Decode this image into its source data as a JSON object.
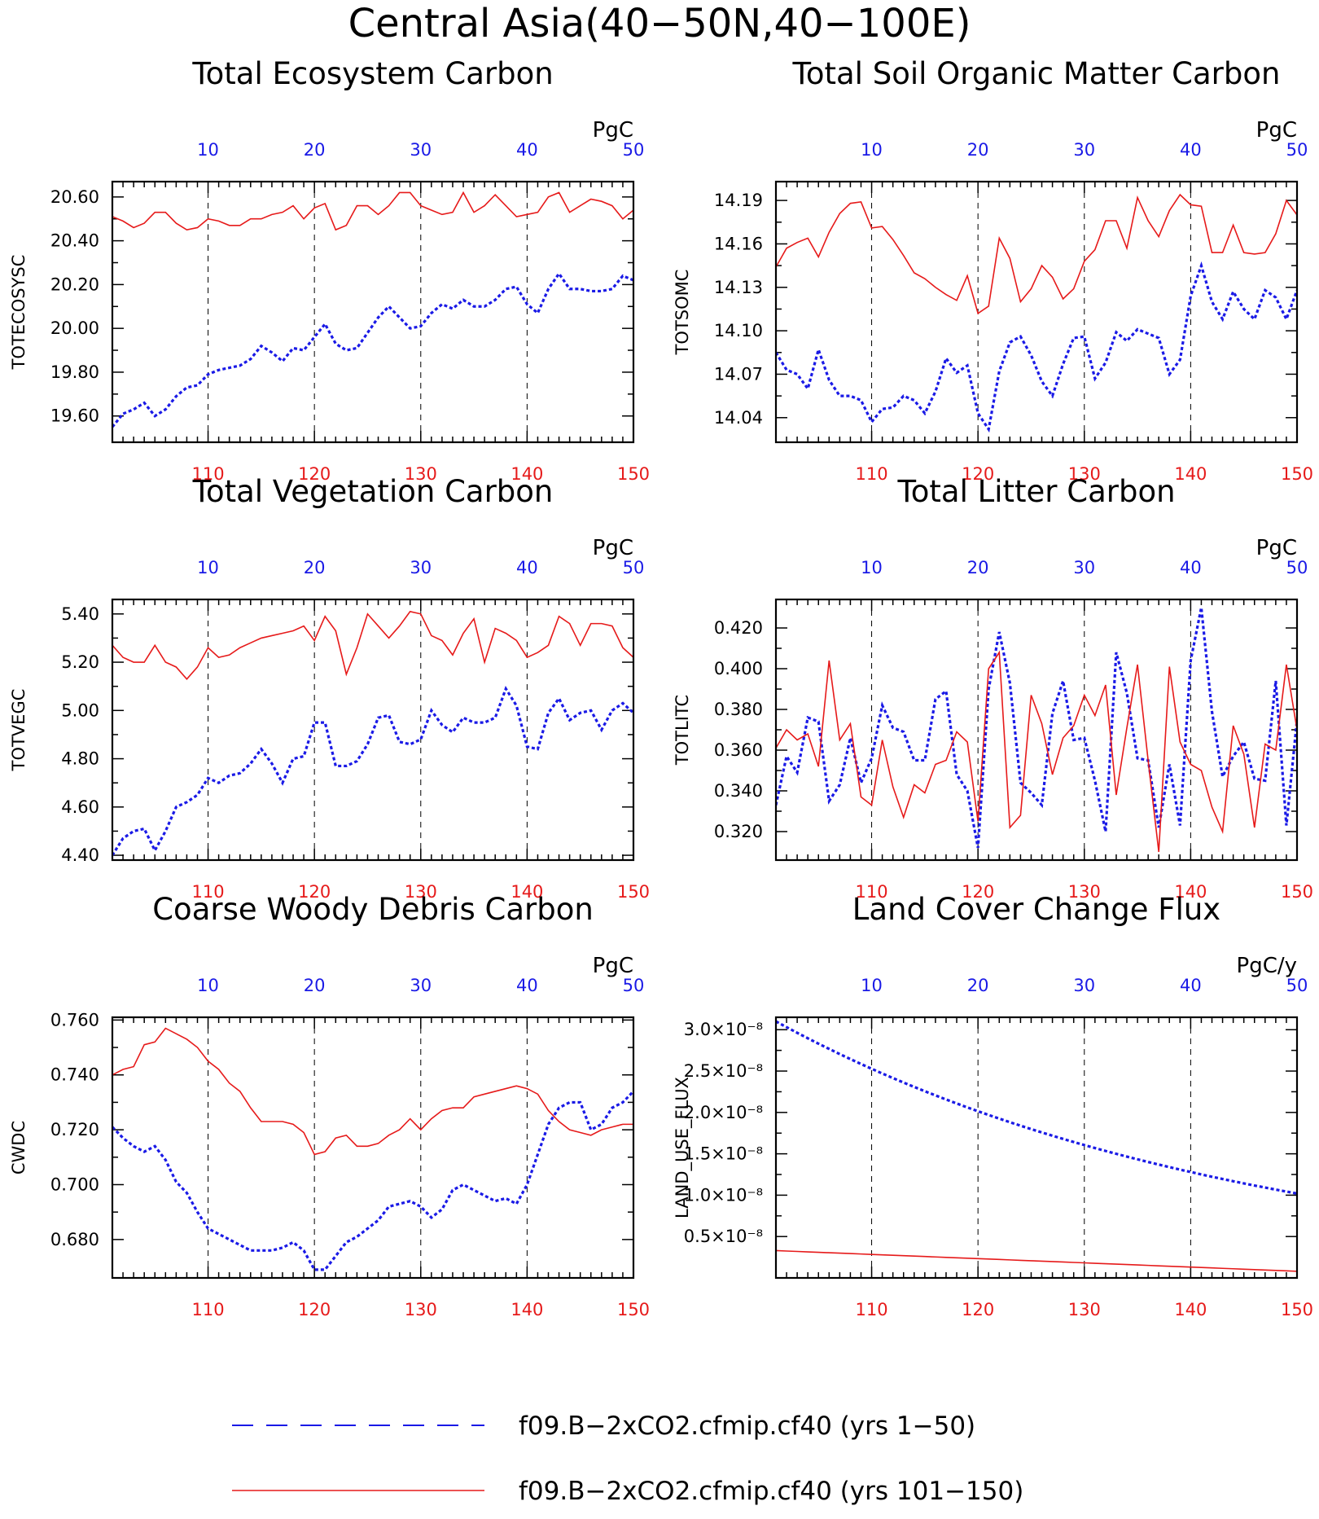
{
  "title": "Central Asia(40−50N,40−100E)",
  "colors": {
    "years_1_50": "#1a1ae6",
    "years_101_150": "#e61a1a",
    "top_axis_labels": "#1a1ae6",
    "bottom_axis_labels": "#e61a1a"
  },
  "legend": [
    {
      "label": "f09.B−2xCO2.cfmip.cf40 (yrs 1−50)",
      "color": "#1a1ae6",
      "style": "dashed"
    },
    {
      "label": "f09.B−2xCO2.cfmip.cf40 (yrs 101−150)",
      "color": "#e61a1a",
      "style": "solid"
    }
  ],
  "top_axis": {
    "ticks": [
      "10",
      "20",
      "30",
      "40",
      "50"
    ]
  },
  "bottom_axis": {
    "ticks": [
      "110",
      "120",
      "130",
      "140",
      "150"
    ]
  },
  "chart_data": [
    {
      "type": "line",
      "title": "Total Ecosystem Carbon",
      "ylabel": "TOTECOSYSC",
      "units": "PgC",
      "x_top": [
        1,
        50
      ],
      "x_bottom": [
        101,
        150
      ],
      "ylim": [
        19.48,
        20.67
      ],
      "yticks": [
        "19.60",
        "19.80",
        "20.00",
        "20.20",
        "20.40",
        "20.60"
      ],
      "series": [
        {
          "name": "f09.B−2xCO2.cfmip.cf40 (yrs 1−50)",
          "values": [
            19.55,
            19.61,
            19.63,
            19.66,
            19.6,
            19.63,
            19.69,
            19.73,
            19.74,
            19.79,
            19.81,
            19.82,
            19.83,
            19.86,
            19.92,
            19.89,
            19.85,
            19.91,
            19.9,
            19.96,
            20.02,
            19.93,
            19.9,
            19.91,
            19.98,
            20.05,
            20.1,
            20.05,
            20.0,
            20.01,
            20.07,
            20.11,
            20.09,
            20.13,
            20.1,
            20.1,
            20.13,
            20.18,
            20.19,
            20.11,
            20.07,
            20.18,
            20.25,
            20.18,
            20.18,
            20.17,
            20.17,
            20.18,
            20.24,
            20.22
          ]
        },
        {
          "name": "f09.B−2xCO2.cfmip.cf40 (yrs 101−150)",
          "values": [
            20.51,
            20.49,
            20.46,
            20.48,
            20.53,
            20.53,
            20.48,
            20.45,
            20.46,
            20.5,
            20.49,
            20.47,
            20.47,
            20.5,
            20.5,
            20.52,
            20.53,
            20.56,
            20.5,
            20.55,
            20.57,
            20.45,
            20.47,
            20.56,
            20.56,
            20.52,
            20.56,
            20.62,
            20.62,
            20.56,
            20.54,
            20.52,
            20.53,
            20.62,
            20.53,
            20.56,
            20.61,
            20.56,
            20.51,
            20.52,
            20.53,
            20.6,
            20.62,
            20.53,
            20.56,
            20.59,
            20.58,
            20.56,
            20.5,
            20.54
          ]
        }
      ]
    },
    {
      "type": "line",
      "title": "Total Soil Organic Matter Carbon",
      "ylabel": "TOTSOMC",
      "units": "PgC",
      "x_top": [
        1,
        50
      ],
      "x_bottom": [
        101,
        150
      ],
      "ylim": [
        14.023,
        14.203
      ],
      "yticks": [
        "14.04",
        "14.07",
        "14.10",
        "14.13",
        "14.16",
        "14.19"
      ],
      "series": [
        {
          "name": "f09.B−2xCO2.cfmip.cf40 (yrs 1−50)",
          "values": [
            14.085,
            14.073,
            14.07,
            14.06,
            14.087,
            14.066,
            14.055,
            14.055,
            14.052,
            14.037,
            14.046,
            14.047,
            14.055,
            14.052,
            14.043,
            14.058,
            14.081,
            14.071,
            14.076,
            14.043,
            14.032,
            14.072,
            14.092,
            14.096,
            14.083,
            14.065,
            14.055,
            14.077,
            14.095,
            14.096,
            14.067,
            14.078,
            14.099,
            14.093,
            14.101,
            14.098,
            14.095,
            14.07,
            14.08,
            14.124,
            14.145,
            14.12,
            14.108,
            14.127,
            14.115,
            14.108,
            14.128,
            14.123,
            14.108,
            14.128
          ]
        },
        {
          "name": "f09.B−2xCO2.cfmip.cf40 (yrs 101−150)",
          "values": [
            14.144,
            14.157,
            14.161,
            14.164,
            14.151,
            14.168,
            14.181,
            14.188,
            14.189,
            14.171,
            14.172,
            14.163,
            14.152,
            14.14,
            14.136,
            14.13,
            14.125,
            14.121,
            14.138,
            14.112,
            14.117,
            14.164,
            14.15,
            14.12,
            14.129,
            14.145,
            14.137,
            14.122,
            14.129,
            14.148,
            14.156,
            14.176,
            14.176,
            14.157,
            14.192,
            14.176,
            14.165,
            14.183,
            14.194,
            14.187,
            14.186,
            14.154,
            14.154,
            14.173,
            14.154,
            14.153,
            14.154,
            14.167,
            14.19,
            14.18
          ]
        }
      ]
    },
    {
      "type": "line",
      "title": "Total Vegetation Carbon",
      "ylabel": "TOTVEGC",
      "units": "PgC",
      "x_top": [
        1,
        50
      ],
      "x_bottom": [
        101,
        150
      ],
      "ylim": [
        4.38,
        5.46
      ],
      "yticks": [
        "4.40",
        "4.60",
        "4.80",
        "5.00",
        "5.20",
        "5.40"
      ],
      "series": [
        {
          "name": "f09.B−2xCO2.cfmip.cf40 (yrs 1−50)",
          "values": [
            4.4,
            4.47,
            4.5,
            4.51,
            4.42,
            4.5,
            4.6,
            4.62,
            4.65,
            4.72,
            4.7,
            4.73,
            4.74,
            4.78,
            4.84,
            4.78,
            4.7,
            4.8,
            4.81,
            4.95,
            4.95,
            4.77,
            4.77,
            4.79,
            4.86,
            4.97,
            4.98,
            4.87,
            4.86,
            4.88,
            5.0,
            4.94,
            4.91,
            4.97,
            4.95,
            4.95,
            4.97,
            5.09,
            5.02,
            4.85,
            4.84,
            4.99,
            5.05,
            4.96,
            4.99,
            5.0,
            4.92,
            5.0,
            5.03,
            4.99
          ]
        },
        {
          "name": "f09.B−2xCO2.cfmip.cf40 (yrs 101−150)",
          "values": [
            5.27,
            5.22,
            5.2,
            5.2,
            5.27,
            5.2,
            5.18,
            5.13,
            5.18,
            5.26,
            5.22,
            5.23,
            5.26,
            5.28,
            5.3,
            5.31,
            5.32,
            5.33,
            5.35,
            5.29,
            5.39,
            5.33,
            5.15,
            5.26,
            5.4,
            5.35,
            5.3,
            5.35,
            5.41,
            5.4,
            5.31,
            5.29,
            5.23,
            5.32,
            5.38,
            5.2,
            5.34,
            5.32,
            5.29,
            5.22,
            5.24,
            5.27,
            5.39,
            5.36,
            5.27,
            5.36,
            5.36,
            5.35,
            5.26,
            5.22
          ]
        }
      ]
    },
    {
      "type": "line",
      "title": "Total Litter Carbon",
      "ylabel": "TOTLITC",
      "units": "PgC",
      "x_top": [
        1,
        50
      ],
      "x_bottom": [
        101,
        150
      ],
      "ylim": [
        0.306,
        0.434
      ],
      "yticks": [
        "0.320",
        "0.340",
        "0.360",
        "0.380",
        "0.400",
        "0.420"
      ],
      "series": [
        {
          "name": "f09.B−2xCO2.cfmip.cf40 (yrs 1−50)",
          "values": [
            0.333,
            0.357,
            0.349,
            0.376,
            0.374,
            0.335,
            0.343,
            0.366,
            0.344,
            0.356,
            0.382,
            0.371,
            0.369,
            0.355,
            0.355,
            0.385,
            0.389,
            0.348,
            0.34,
            0.312,
            0.39,
            0.418,
            0.393,
            0.344,
            0.339,
            0.333,
            0.378,
            0.394,
            0.365,
            0.366,
            0.345,
            0.32,
            0.408,
            0.388,
            0.356,
            0.355,
            0.322,
            0.353,
            0.323,
            0.404,
            0.43,
            0.379,
            0.347,
            0.357,
            0.364,
            0.346,
            0.345,
            0.394,
            0.323,
            0.375
          ]
        },
        {
          "name": "f09.B−2xCO2.cfmip.cf40 (yrs 101−150)",
          "values": [
            0.361,
            0.37,
            0.365,
            0.368,
            0.352,
            0.404,
            0.365,
            0.373,
            0.337,
            0.333,
            0.365,
            0.342,
            0.327,
            0.343,
            0.339,
            0.353,
            0.355,
            0.369,
            0.364,
            0.325,
            0.4,
            0.408,
            0.322,
            0.328,
            0.387,
            0.373,
            0.348,
            0.366,
            0.372,
            0.387,
            0.377,
            0.392,
            0.338,
            0.371,
            0.402,
            0.355,
            0.31,
            0.401,
            0.364,
            0.353,
            0.35,
            0.332,
            0.32,
            0.372,
            0.358,
            0.322,
            0.363,
            0.36,
            0.402,
            0.37
          ]
        }
      ]
    },
    {
      "type": "line",
      "title": "Coarse Woody Debris Carbon",
      "ylabel": "CWDC",
      "units": "PgC",
      "x_top": [
        1,
        50
      ],
      "x_bottom": [
        101,
        150
      ],
      "ylim": [
        0.666,
        0.761
      ],
      "yticks": [
        "0.680",
        "0.700",
        "0.720",
        "0.740",
        "0.760"
      ],
      "series": [
        {
          "name": "f09.B−2xCO2.cfmip.cf40 (yrs 1−50)",
          "values": [
            0.721,
            0.717,
            0.714,
            0.712,
            0.714,
            0.709,
            0.701,
            0.697,
            0.69,
            0.684,
            0.682,
            0.68,
            0.678,
            0.676,
            0.676,
            0.676,
            0.677,
            0.679,
            0.676,
            0.669,
            0.669,
            0.674,
            0.679,
            0.681,
            0.684,
            0.687,
            0.692,
            0.693,
            0.694,
            0.692,
            0.688,
            0.691,
            0.698,
            0.7,
            0.698,
            0.696,
            0.694,
            0.695,
            0.693,
            0.7,
            0.711,
            0.722,
            0.728,
            0.73,
            0.73,
            0.72,
            0.722,
            0.728,
            0.73,
            0.734
          ]
        },
        {
          "name": "f09.B−2xCO2.cfmip.cf40 (yrs 101−150)",
          "values": [
            0.74,
            0.742,
            0.743,
            0.751,
            0.752,
            0.757,
            0.755,
            0.753,
            0.75,
            0.745,
            0.742,
            0.737,
            0.734,
            0.728,
            0.723,
            0.723,
            0.723,
            0.722,
            0.719,
            0.711,
            0.712,
            0.717,
            0.718,
            0.714,
            0.714,
            0.715,
            0.718,
            0.72,
            0.724,
            0.72,
            0.724,
            0.727,
            0.728,
            0.728,
            0.732,
            0.733,
            0.734,
            0.735,
            0.736,
            0.735,
            0.733,
            0.727,
            0.723,
            0.72,
            0.719,
            0.718,
            0.72,
            0.721,
            0.722,
            0.722
          ]
        }
      ]
    },
    {
      "type": "line",
      "title": "Land Cover Change Flux",
      "ylabel": "LAND_USE_FLUX",
      "units": "PgC/y",
      "x_top": [
        1,
        50
      ],
      "x_bottom": [
        101,
        150
      ],
      "ylim": [
        0.0,
        3.15e-08
      ],
      "yticks": [
        "0.5×10⁻⁸",
        "1.0×10⁻⁸",
        "1.5×10⁻⁸",
        "2.0×10⁻⁸",
        "2.5×10⁻⁸",
        "3.0×10⁻⁸"
      ],
      "series": [
        {
          "name": "f09.B−2xCO2.cfmip.cf40 (yrs 1−50)",
          "start": 3.1e-08,
          "end": 1.02e-08,
          "shape": "exponential decay"
        },
        {
          "name": "f09.B−2xCO2.cfmip.cf40 (yrs 101−150)",
          "start": 3.3e-09,
          "end": 8e-10,
          "shape": "linear decline"
        }
      ]
    }
  ]
}
